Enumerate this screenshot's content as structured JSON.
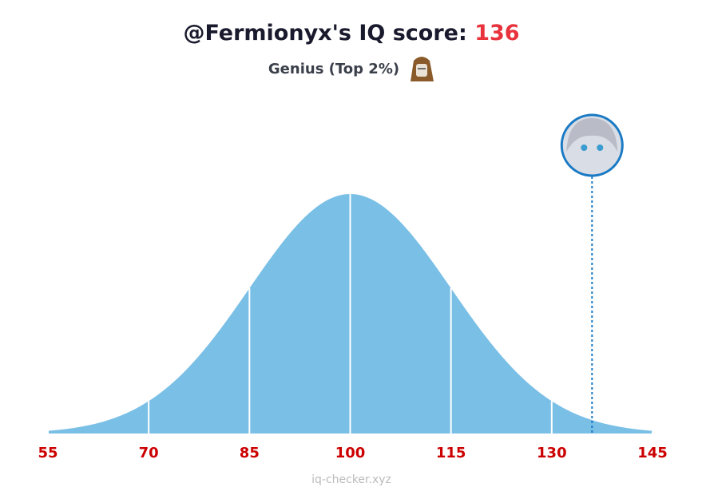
{
  "chart_data": {
    "type": "bell",
    "title": "@Fermionyx's IQ score:",
    "score": 136,
    "subtitle": "Genius (Top 2%)",
    "xlim": [
      55,
      145
    ],
    "xticks": [
      55,
      70,
      85,
      100,
      115,
      130,
      145
    ],
    "color": "#7abfe6",
    "marker_color": "#1a7ac4",
    "footer": "iq-checker.xyz"
  }
}
